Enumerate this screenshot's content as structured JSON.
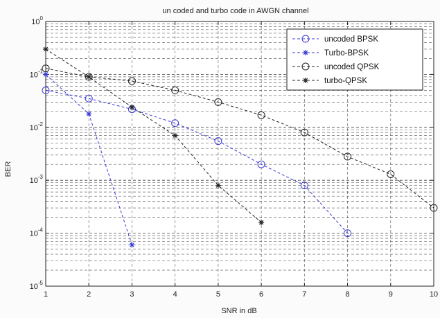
{
  "chart_data": {
    "type": "line",
    "title": "un coded and turbo code in AWGN channel",
    "xlabel": "SNR in dB",
    "ylabel": "BER",
    "xlim": [
      1,
      10
    ],
    "ylim": [
      1e-05,
      1
    ],
    "yscale": "log",
    "grid": true,
    "legend_position": "top-right",
    "x_ticks": [
      "1",
      "2",
      "3",
      "4",
      "5",
      "6",
      "7",
      "8",
      "9",
      "10"
    ],
    "y_ticks": [
      {
        "base": "10",
        "exp": "-5",
        "value": 1e-05
      },
      {
        "base": "10",
        "exp": "-4",
        "value": 0.0001
      },
      {
        "base": "10",
        "exp": "-3",
        "value": 0.001
      },
      {
        "base": "10",
        "exp": "-2",
        "value": 0.01
      },
      {
        "base": "10",
        "exp": "-1",
        "value": 0.1
      },
      {
        "base": "10",
        "exp": "0",
        "value": 1
      }
    ],
    "series": [
      {
        "name": "uncoded BPSK",
        "color": "#3a3ad6",
        "marker": "circle",
        "x": [
          1,
          2,
          3,
          4,
          5,
          6,
          7,
          8
        ],
        "y": [
          0.05,
          0.035,
          0.022,
          0.012,
          0.0055,
          0.002,
          0.0008,
          0.0001
        ]
      },
      {
        "name": "Turbo-BPSK",
        "color": "#3a3ad6",
        "marker": "star",
        "x": [
          1,
          2,
          3
        ],
        "y": [
          0.1,
          0.018,
          6e-05
        ]
      },
      {
        "name": "uncoded QPSK",
        "color": "#222222",
        "marker": "circle",
        "x": [
          1,
          2,
          3,
          4,
          5,
          6,
          7,
          8,
          9,
          10
        ],
        "y": [
          0.13,
          0.09,
          0.075,
          0.05,
          0.03,
          0.017,
          0.008,
          0.0028,
          0.0013,
          0.0003
        ]
      },
      {
        "name": "turbo-QPSK",
        "color": "#222222",
        "marker": "star",
        "x": [
          1,
          2,
          3,
          4,
          5,
          6
        ],
        "y": [
          0.3,
          0.09,
          0.024,
          0.007,
          0.0008,
          0.00016
        ]
      }
    ]
  }
}
